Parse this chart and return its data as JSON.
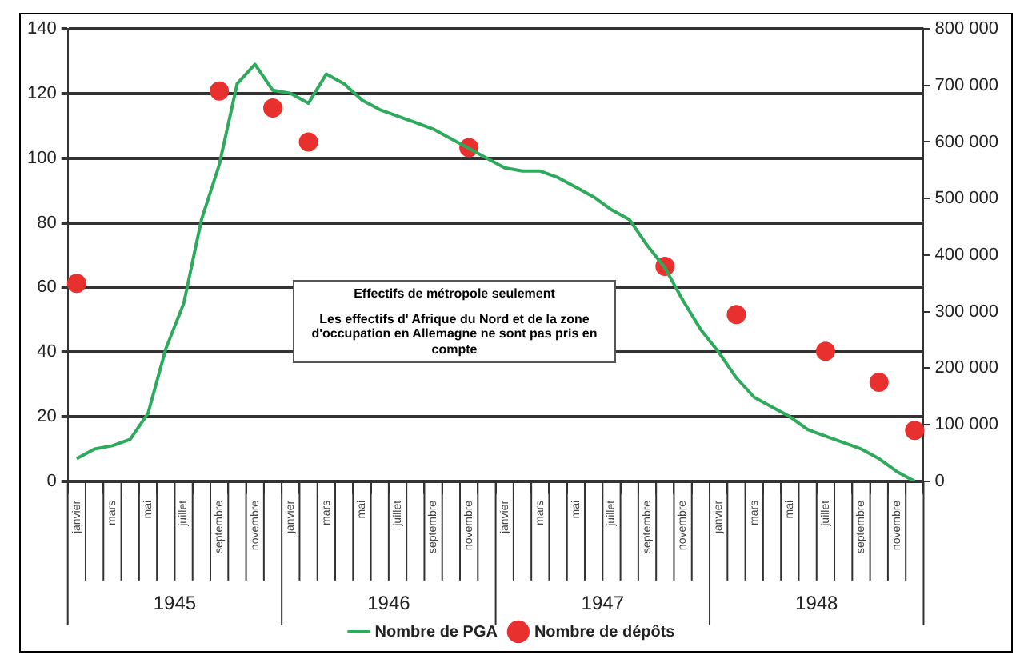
{
  "chart_data": {
    "type": "line",
    "categories": [
      "janvier",
      null,
      "mars",
      null,
      "mai",
      null,
      "juillet",
      null,
      "septembre",
      null,
      "novembre",
      null,
      "janvier",
      null,
      "mars",
      null,
      "mai",
      null,
      "juillet",
      null,
      "septembre",
      null,
      "novembre",
      null,
      "janvier",
      null,
      "mars",
      null,
      "mai",
      null,
      "juillet",
      null,
      "septembre",
      null,
      "novembre",
      null,
      "janvier",
      null,
      "mars",
      null,
      "mai",
      null,
      "juillet",
      null,
      "septembre",
      null,
      "novembre",
      null
    ],
    "series": [
      {
        "name": "Nombre de PGA",
        "color": "#2eaa5c",
        "marker": "none",
        "values": [
          7,
          10,
          11,
          13,
          21,
          41,
          55,
          81,
          98,
          123,
          129,
          121,
          120,
          117,
          126,
          123,
          118,
          115,
          113,
          111,
          109,
          106,
          103,
          100,
          97,
          96,
          96,
          94,
          91,
          88,
          84,
          81,
          73,
          66,
          56,
          47,
          40,
          32,
          26,
          23,
          20,
          16,
          14,
          12,
          10,
          7,
          3,
          0
        ]
      },
      {
        "name": "Nombre de dépôts",
        "type": "scatter",
        "axis": "y2",
        "color": "#e8312f",
        "marker": "circle",
        "values": [
          350000,
          null,
          null,
          null,
          null,
          null,
          null,
          null,
          690000,
          null,
          null,
          660000,
          null,
          600000,
          null,
          null,
          null,
          null,
          null,
          null,
          null,
          null,
          590000,
          null,
          null,
          null,
          null,
          null,
          null,
          null,
          null,
          null,
          null,
          380000,
          null,
          null,
          null,
          295000,
          null,
          null,
          null,
          null,
          230000,
          null,
          null,
          175000,
          null,
          90000
        ]
      }
    ],
    "ylim": [
      0,
      140
    ],
    "yticks": [
      0,
      20,
      40,
      60,
      80,
      100,
      120,
      140
    ],
    "y2lim": [
      0,
      800000
    ],
    "y2ticks": [
      {
        "value": 0,
        "label": "0"
      },
      {
        "value": 100000,
        "label": "100 000"
      },
      {
        "value": 200000,
        "label": "200 000"
      },
      {
        "value": 300000,
        "label": "300 000"
      },
      {
        "value": 400000,
        "label": "400 000"
      },
      {
        "value": 500000,
        "label": "500 000"
      },
      {
        "value": 600000,
        "label": "600 000"
      },
      {
        "value": 700000,
        "label": "700 000"
      },
      {
        "value": 800000,
        "label": "800 000"
      }
    ],
    "annotations": [
      "Effectifs de métropole seulement",
      "Les effectifs d' Afrique du Nord et de la zone d'occupation en Allemagne ne sont pas pris en compte",
      "1945",
      "1946",
      "1947",
      "1948"
    ],
    "grid": "y",
    "legend": "bottom"
  }
}
